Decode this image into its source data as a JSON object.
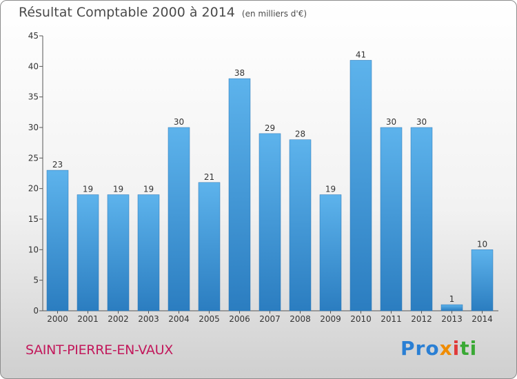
{
  "chart_data": {
    "type": "bar",
    "title": "Résultat Comptable 2000 à 2014",
    "unit_label": "(en milliers d'€)",
    "categories": [
      "2000",
      "2001",
      "2002",
      "2003",
      "2004",
      "2005",
      "2006",
      "2007",
      "2008",
      "2009",
      "2010",
      "2011",
      "2012",
      "2013",
      "2014"
    ],
    "values": [
      23,
      19,
      19,
      19,
      30,
      21,
      38,
      29,
      28,
      19,
      41,
      30,
      30,
      1,
      10
    ],
    "ylim": [
      0,
      45
    ],
    "yticks": [
      0,
      5,
      10,
      15,
      20,
      25,
      30,
      35,
      40,
      45
    ],
    "xlabel": "",
    "ylabel": "",
    "grid": false,
    "bar_color": "#4a9fe0"
  },
  "footer": {
    "town": "SAINT-PIERRE-EN-VAUX",
    "logo": "Proxiti"
  }
}
